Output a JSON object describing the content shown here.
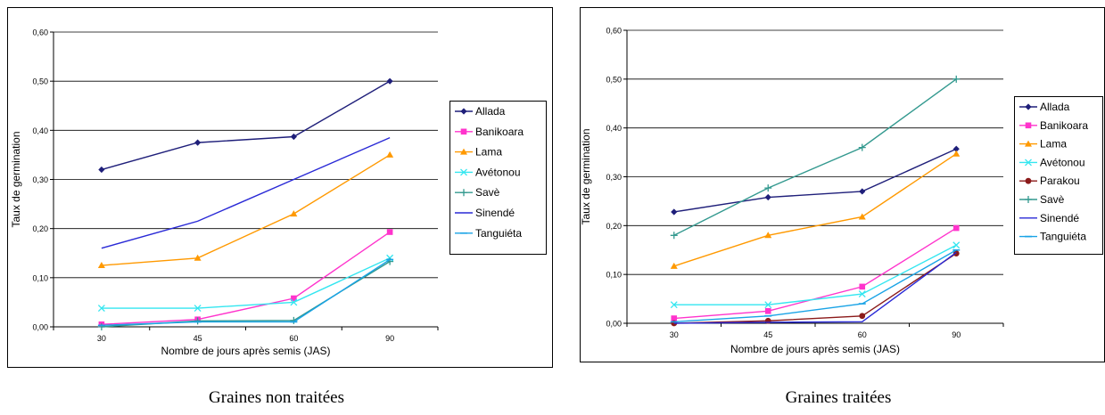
{
  "captions": [
    "Graines non traitées",
    "Graines traitées"
  ],
  "chart_data": [
    {
      "type": "line",
      "title": "",
      "xlabel": "Nombre de jours après semis (JAS)",
      "ylabel": "Taux de germination",
      "categories": [
        "30",
        "45",
        "60",
        "90"
      ],
      "ylim": [
        0,
        0.6
      ],
      "yticks": [
        "0,00",
        "0,10",
        "0,20",
        "0,30",
        "0,40",
        "0,50",
        "0,60"
      ],
      "grid": true,
      "legend_position": "right",
      "series": [
        {
          "name": "Allada",
          "color": "#1f1f7a",
          "marker": "diamond",
          "values": [
            0.32,
            0.375,
            0.387,
            0.5
          ]
        },
        {
          "name": "Banikoara",
          "color": "#ff33cc",
          "marker": "square",
          "values": [
            0.005,
            0.015,
            0.058,
            0.193
          ]
        },
        {
          "name": "Lama",
          "color": "#ff9900",
          "marker": "triangle",
          "values": [
            0.125,
            0.14,
            0.23,
            0.35
          ]
        },
        {
          "name": "Avétonou",
          "color": "#33e6f0",
          "marker": "x",
          "values": [
            0.038,
            0.038,
            0.05,
            0.14
          ]
        },
        {
          "name": "Savè",
          "color": "#33998f",
          "marker": "plus",
          "values": [
            0.0,
            0.012,
            0.013,
            0.133
          ]
        },
        {
          "name": "Sinendé",
          "color": "#2929d6",
          "marker": "none",
          "values": [
            0.16,
            0.215,
            0.3,
            0.385
          ]
        },
        {
          "name": "Tanguiéta",
          "color": "#19a3e6",
          "marker": "dash",
          "values": [
            0.003,
            0.01,
            0.01,
            0.137
          ]
        }
      ]
    },
    {
      "type": "line",
      "title": "",
      "xlabel": "Nombre de jours après semis (JAS)",
      "ylabel": "Taux de germination",
      "categories": [
        "30",
        "45",
        "60",
        "90"
      ],
      "ylim": [
        0,
        0.6
      ],
      "yticks": [
        "0,00",
        "0,10",
        "0,20",
        "0,30",
        "0,40",
        "0,50",
        "0,60"
      ],
      "grid": true,
      "legend_position": "right",
      "series": [
        {
          "name": "Allada",
          "color": "#1f1f7a",
          "marker": "diamond",
          "values": [
            0.228,
            0.258,
            0.27,
            0.357
          ]
        },
        {
          "name": "Banikoara",
          "color": "#ff33cc",
          "marker": "square",
          "values": [
            0.01,
            0.025,
            0.075,
            0.195
          ]
        },
        {
          "name": "Lama",
          "color": "#ff9900",
          "marker": "triangle",
          "values": [
            0.117,
            0.18,
            0.218,
            0.347
          ]
        },
        {
          "name": "Avétonou",
          "color": "#33e6f0",
          "marker": "x",
          "values": [
            0.038,
            0.038,
            0.06,
            0.16
          ]
        },
        {
          "name": "Parakou",
          "color": "#8b1a1a",
          "marker": "circle",
          "values": [
            0.0,
            0.005,
            0.015,
            0.143
          ]
        },
        {
          "name": "Savè",
          "color": "#33998f",
          "marker": "plus",
          "values": [
            0.18,
            0.277,
            0.36,
            0.5
          ]
        },
        {
          "name": "Sinendé",
          "color": "#2929d6",
          "marker": "none",
          "values": [
            0.0,
            0.002,
            0.003,
            0.145
          ]
        },
        {
          "name": "Tanguiéta",
          "color": "#19a3e6",
          "marker": "dash",
          "values": [
            0.003,
            0.015,
            0.04,
            0.15
          ]
        }
      ]
    }
  ]
}
